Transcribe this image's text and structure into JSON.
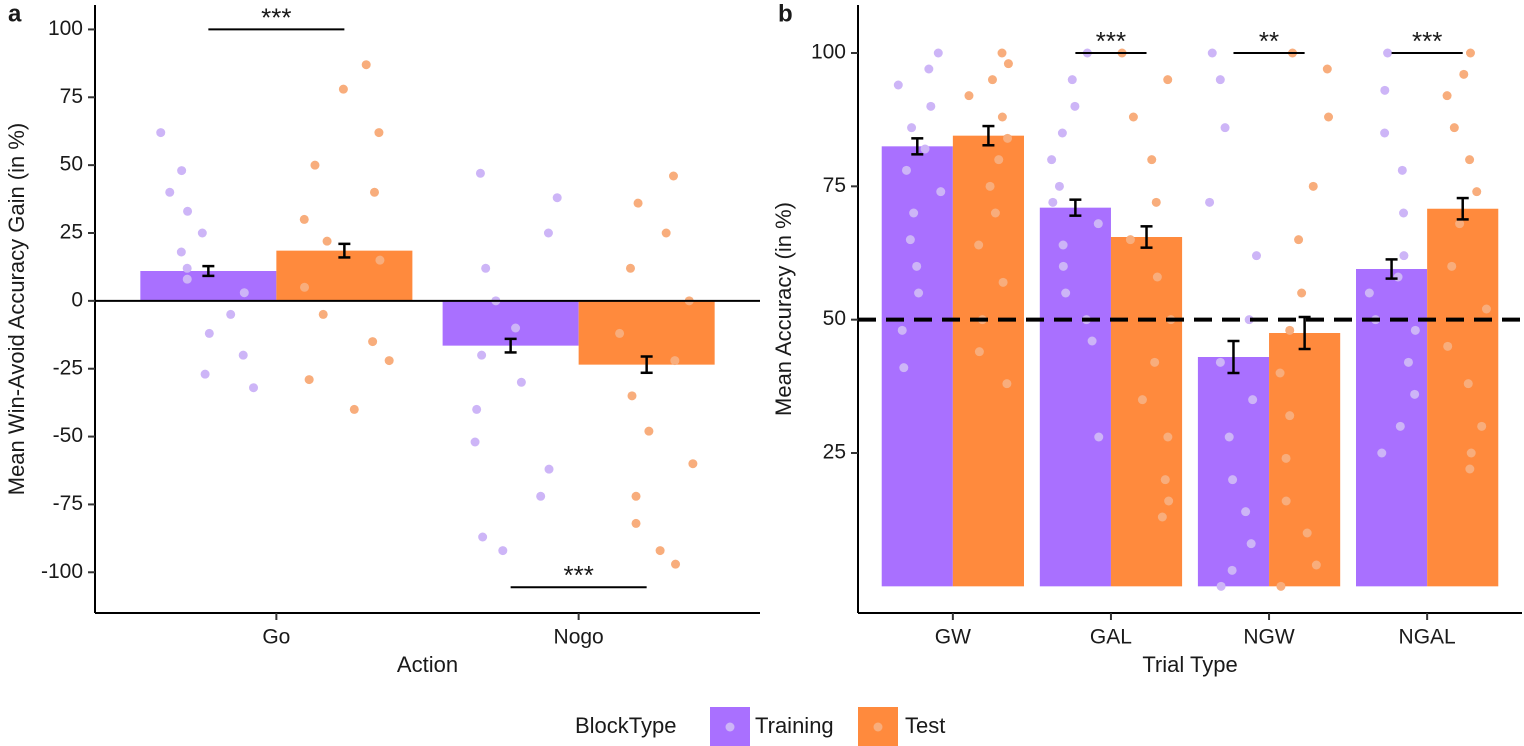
{
  "legend": {
    "title": "BlockType"
  },
  "chart_data": [
    {
      "type": "bar",
      "panel_label": "a",
      "x_label": "Action",
      "y_label": "Mean Win-Avoid Accuracy Gain (in %)",
      "categories": [
        "Go",
        "Nogo"
      ],
      "series": [
        {
          "name": "Training",
          "color": "#a970ff",
          "point_color": "#cdb5f7",
          "values": [
            11,
            -16.5
          ],
          "errors": [
            1.8,
            2.5
          ],
          "points": [
            [
              62,
              48,
              40,
              33,
              25,
              18,
              12,
              8,
              3,
              -5,
              -12,
              -20,
              -27,
              -32
            ],
            [
              47,
              38,
              25,
              12,
              0,
              -10,
              -20,
              -30,
              -40,
              -52,
              -62,
              -72,
              -87,
              -92
            ]
          ]
        },
        {
          "name": "Test",
          "color": "#ff8a3d",
          "point_color": "#f8ad7c",
          "values": [
            18.5,
            -23.5
          ],
          "errors": [
            2.5,
            3
          ],
          "points": [
            [
              87,
              78,
              62,
              50,
              40,
              30,
              22,
              15,
              5,
              -5,
              -15,
              -22,
              -29,
              -40
            ],
            [
              46,
              36,
              25,
              12,
              0,
              -12,
              -22,
              -35,
              -48,
              -60,
              -72,
              -82,
              -92,
              -97
            ]
          ]
        }
      ],
      "ylim": [
        -115,
        109
      ],
      "yticks": [
        -100,
        -75,
        -50,
        -25,
        0,
        25,
        50,
        75,
        100
      ],
      "zero_line": 0,
      "annotations": [
        {
          "text": "***",
          "category": "Go",
          "y": 100
        },
        {
          "text": "***",
          "category": "Nogo",
          "y": -105.5
        }
      ]
    },
    {
      "type": "bar",
      "panel_label": "b",
      "x_label": "Trial Type",
      "y_label": "Mean Accuracy (in %)",
      "categories": [
        "GW",
        "GAL",
        "NGW",
        "NGAL"
      ],
      "series": [
        {
          "name": "Training",
          "color": "#a970ff",
          "point_color": "#cdb5f7",
          "values": [
            82.5,
            71,
            43,
            59.5
          ],
          "errors": [
            1.5,
            1.5,
            3,
            1.8
          ],
          "points": [
            [
              100,
              97,
              94,
              90,
              86,
              82,
              78,
              74,
              70,
              65,
              60,
              55,
              48,
              41
            ],
            [
              100,
              95,
              90,
              85,
              80,
              75,
              72,
              68,
              64,
              60,
              55,
              50,
              46,
              28
            ],
            [
              100,
              95,
              86,
              72,
              62,
              50,
              42,
              35,
              28,
              20,
              14,
              8,
              3,
              0
            ],
            [
              100,
              93,
              85,
              78,
              70,
              62,
              55,
              48,
              42,
              36,
              30,
              25,
              50,
              58
            ]
          ]
        },
        {
          "name": "Test",
          "color": "#ff8a3d",
          "point_color": "#f8ad7c",
          "values": [
            84.5,
            65.5,
            47.5,
            70.8
          ],
          "errors": [
            1.8,
            2,
            3,
            2
          ],
          "points": [
            [
              100,
              98,
              95,
              92,
              88,
              84,
              80,
              75,
              70,
              64,
              57,
              50,
              44,
              38
            ],
            [
              100,
              95,
              88,
              80,
              72,
              65,
              58,
              50,
              42,
              35,
              28,
              20,
              16,
              13
            ],
            [
              100,
              97,
              88,
              75,
              65,
              55,
              48,
              40,
              32,
              24,
              16,
              10,
              4,
              0
            ],
            [
              100,
              96,
              92,
              86,
              80,
              74,
              68,
              60,
              52,
              45,
              38,
              30,
              25,
              22
            ]
          ]
        }
      ],
      "ylim": [
        -5,
        109
      ],
      "yticks": [
        25,
        50,
        75,
        100
      ],
      "reference_line": 50,
      "annotations": [
        {
          "text": "***",
          "category": "GAL",
          "y": 100
        },
        {
          "text": "**",
          "category": "NGW",
          "y": 100
        },
        {
          "text": "***",
          "category": "NGAL",
          "y": 100
        }
      ]
    }
  ]
}
